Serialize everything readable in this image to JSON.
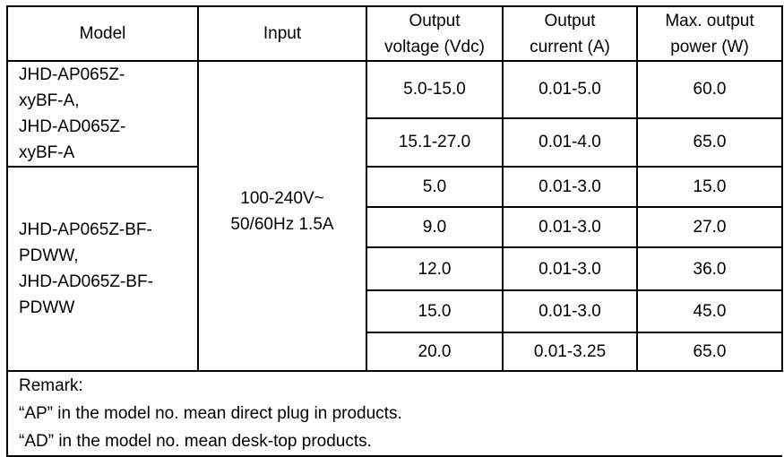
{
  "header": {
    "model": "Model",
    "input": "Input",
    "voltage": [
      "Output",
      "voltage (Vdc)"
    ],
    "current": [
      "Output",
      "current (A)"
    ],
    "power": [
      "Max. output",
      "power (W)"
    ]
  },
  "input_value": [
    "100-240V~",
    "50/60Hz 1.5A"
  ],
  "groups": [
    {
      "model_lines": [
        "JHD-AP065Z-",
        "xyBF-A,",
        "JHD-AD065Z-",
        "xyBF-A"
      ],
      "rows": [
        {
          "voltage": "5.0-15.0",
          "current": "0.01-5.0",
          "power": "60.0"
        },
        {
          "voltage": "15.1-27.0",
          "current": "0.01-4.0",
          "power": "65.0"
        }
      ]
    },
    {
      "model_lines": [
        "JHD-AP065Z-BF-",
        "PDWW,",
        "JHD-AD065Z-BF-",
        "PDWW"
      ],
      "rows": [
        {
          "voltage": "5.0",
          "current": "0.01-3.0",
          "power": "15.0"
        },
        {
          "voltage": "9.0",
          "current": "0.01-3.0",
          "power": "27.0"
        },
        {
          "voltage": "12.0",
          "current": "0.01-3.0",
          "power": "36.0"
        },
        {
          "voltage": "15.0",
          "current": "0.01-3.0",
          "power": "45.0"
        },
        {
          "voltage": "20.0",
          "current": "0.01-3.25",
          "power": "65.0"
        }
      ]
    }
  ],
  "remark": [
    "Remark:",
    "“AP” in the model no. mean direct plug in products.",
    "“AD” in the model no. mean desk-top products."
  ]
}
